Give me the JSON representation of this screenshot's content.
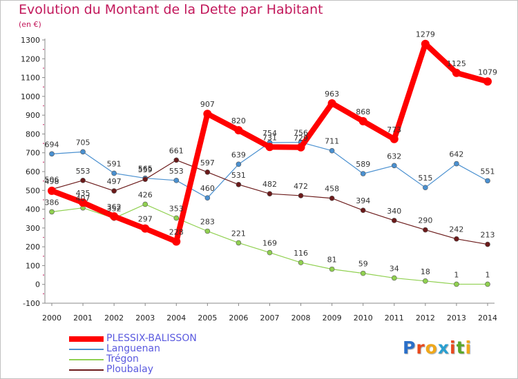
{
  "title": "Evolution du Montant de la Dette par Habitant",
  "unit_label": "(en €)",
  "chart_data": {
    "type": "line",
    "title": "Evolution du Montant de la Dette par Habitant",
    "ylabel": "(en €)",
    "x": [
      "2000",
      "2001",
      "2002",
      "2003",
      "2004",
      "2005",
      "2006",
      "2007",
      "2008",
      "2009",
      "2010",
      "2011",
      "2012",
      "2013",
      "2014"
    ],
    "ylim": [
      -100,
      1300
    ],
    "yticks": [
      -100,
      0,
      100,
      200,
      300,
      400,
      500,
      600,
      700,
      800,
      900,
      1000,
      1100,
      1200,
      1300
    ],
    "grid": false,
    "legend_position": "bottom-left",
    "series": [
      {
        "name": "PLESSIX-BALISSON",
        "color": "#ff0000",
        "values": [
          498,
          435,
          362,
          297,
          228,
          907,
          820,
          731,
          729,
          963,
          868,
          773,
          1279,
          1125,
          1079
        ]
      },
      {
        "name": "Languenan",
        "color": "#4a90d0",
        "values": [
          694,
          705,
          591,
          565,
          553,
          460,
          639,
          754,
          756,
          711,
          589,
          632,
          515,
          642,
          551
        ]
      },
      {
        "name": "Trégon",
        "color": "#90d050",
        "values": [
          386,
          407,
          352,
          426,
          353,
          283,
          221,
          169,
          116,
          81,
          59,
          34,
          18,
          1,
          1
        ]
      },
      {
        "name": "Ploubalay",
        "color": "#6b1a1a",
        "values": [
          506,
          553,
          497,
          559,
          661,
          597,
          531,
          482,
          472,
          458,
          394,
          340,
          290,
          242,
          213
        ]
      }
    ]
  },
  "logo": {
    "letters": [
      "P",
      "r",
      "o",
      "x",
      "i",
      "t",
      "i"
    ],
    "colors": [
      "#2a6fc9",
      "#e84a1e",
      "#f0a81a",
      "#2a9fd0",
      "#e84a1e",
      "#5aa82a",
      "#f0a81a"
    ]
  }
}
